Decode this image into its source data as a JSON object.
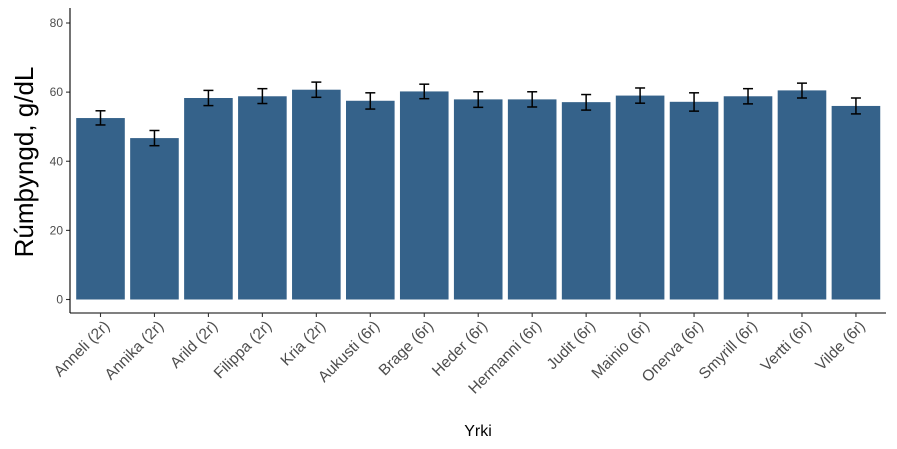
{
  "chart_data": {
    "type": "bar",
    "xlabel": "Yrki",
    "ylabel": "Rúmþyngd, g/dL",
    "ylim": [
      0,
      84
    ],
    "yticks": [
      0,
      20,
      40,
      60,
      80
    ],
    "grid": false,
    "bar_color": "#35628a",
    "categories": [
      "Anneli (2r)",
      "Annika (2r)",
      "Arild (2r)",
      "Filippa (2r)",
      "Kria (2r)",
      "Aukusti (6r)",
      "Brage (6r)",
      "Heder (6r)",
      "Hermanni (6r)",
      "Judit (6r)",
      "Mainio (6r)",
      "Onerva (6r)",
      "Smyrill (6r)",
      "Vertti (6r)",
      "Vilde (6r)"
    ],
    "values": [
      52.5,
      46.7,
      58.3,
      58.8,
      60.7,
      57.5,
      60.2,
      57.9,
      57.9,
      57.1,
      59.0,
      57.2,
      58.8,
      60.5,
      56.0
    ],
    "error_low": [
      50.5,
      44.5,
      56.1,
      56.7,
      58.5,
      55.1,
      58.1,
      55.6,
      55.7,
      54.8,
      56.8,
      54.5,
      56.6,
      58.3,
      53.7
    ],
    "error_high": [
      54.6,
      48.9,
      60.5,
      61.0,
      62.9,
      59.8,
      62.3,
      60.1,
      60.1,
      59.3,
      61.2,
      59.8,
      61.0,
      62.6,
      58.3
    ]
  }
}
